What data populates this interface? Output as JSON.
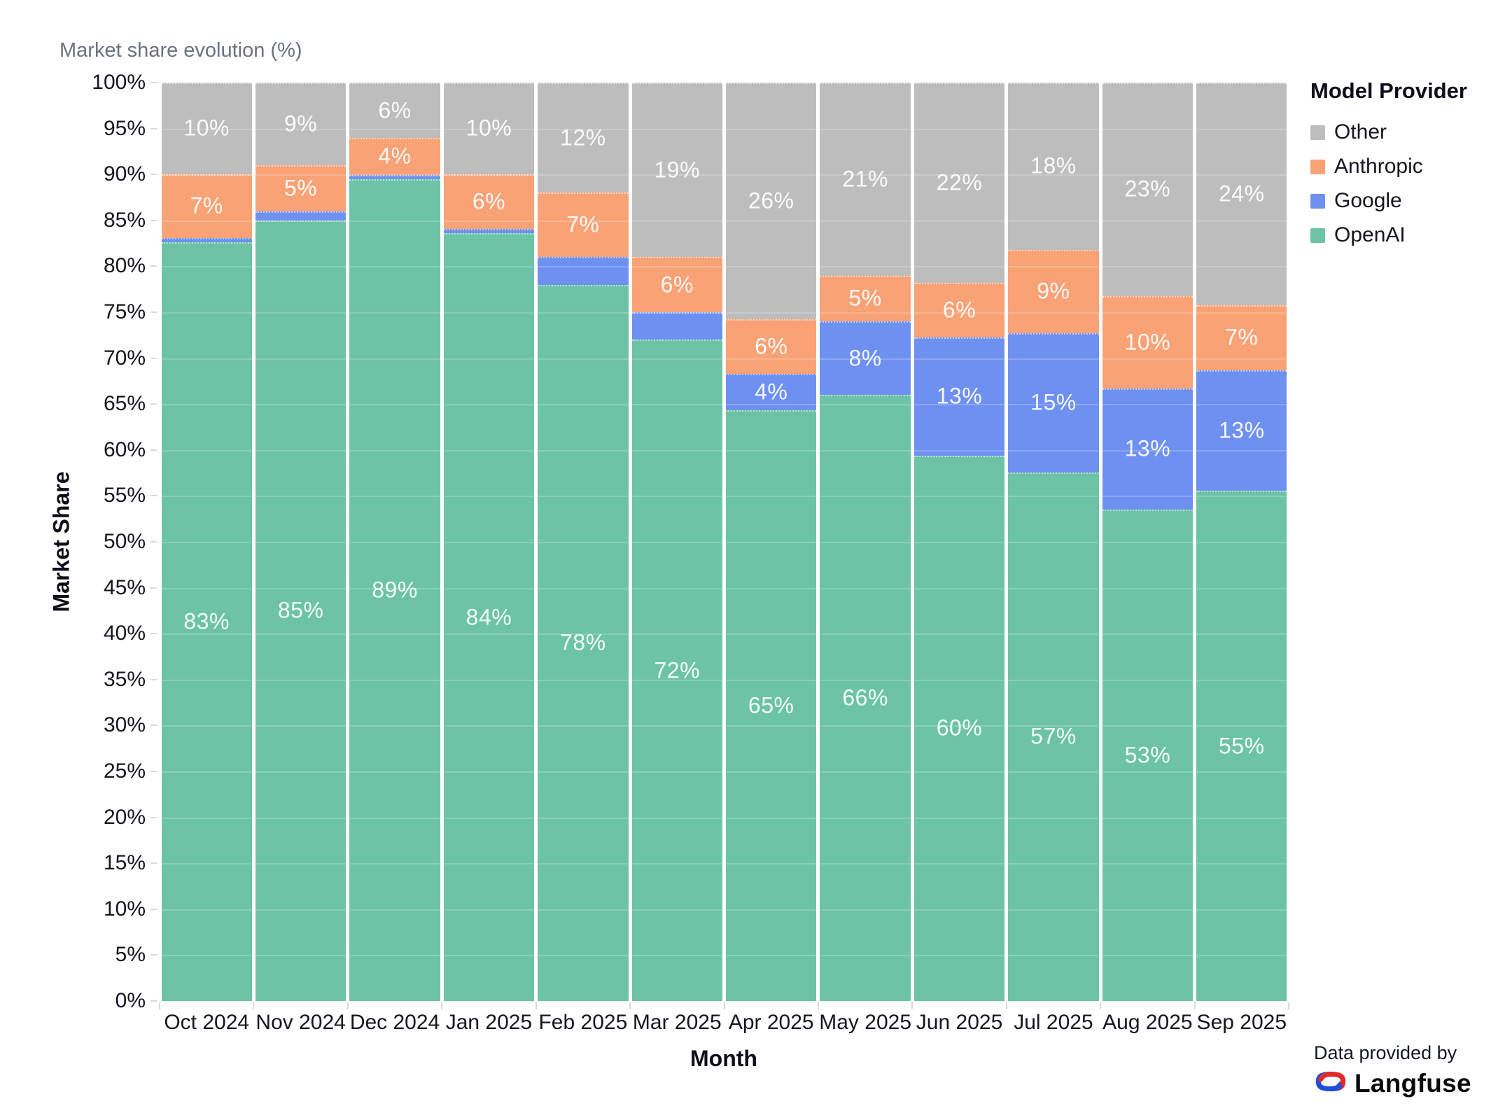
{
  "header": {
    "title": "Market share evolution (%)"
  },
  "legend": {
    "title": "Model Provider"
  },
  "footer": {
    "provided_by": "Data provided by",
    "brand": "Langfuse"
  },
  "chart_data": {
    "type": "bar",
    "stacked": true,
    "title": "Market share evolution (%)",
    "xlabel": "Month",
    "ylabel": "Market Share",
    "ylim": [
      0,
      100
    ],
    "ytick_step": 5,
    "ytick_suffix": "%",
    "grid": true,
    "legend_position": "right",
    "label_suffix": "%",
    "label_min_value": 4,
    "categories": [
      "Oct 2024",
      "Nov 2024",
      "Dec 2024",
      "Jan 2025",
      "Feb 2025",
      "Mar 2025",
      "Apr 2025",
      "May 2025",
      "Jun 2025",
      "Jul 2025",
      "Aug 2025",
      "Sep 2025"
    ],
    "series": [
      {
        "name": "OpenAI",
        "color": "#6cc3a5",
        "values": [
          83,
          85,
          89,
          84,
          78,
          72,
          65,
          66,
          60,
          57,
          53,
          55
        ]
      },
      {
        "name": "Google",
        "color": "#6e90f0",
        "values": [
          0.5,
          1,
          0.5,
          0.5,
          3,
          3,
          4,
          8,
          13,
          15,
          13,
          13
        ]
      },
      {
        "name": "Anthropic",
        "color": "#f9a276",
        "values": [
          7,
          5,
          4,
          6,
          7,
          6,
          6,
          5,
          6,
          9,
          10,
          7
        ]
      },
      {
        "name": "Other",
        "color": "#bdbdbd",
        "values": [
          10,
          9,
          6,
          10,
          12,
          19,
          26,
          21,
          22,
          18,
          23,
          24
        ]
      }
    ],
    "logo_colors": {
      "blue": "#1f4fd8",
      "red": "#e02b2b"
    }
  }
}
